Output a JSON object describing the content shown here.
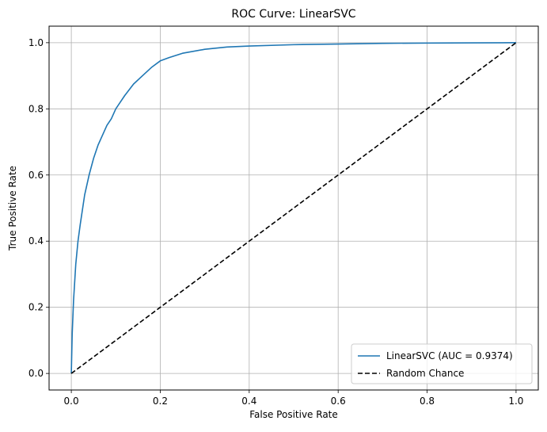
{
  "chart_data": {
    "type": "line",
    "title": "ROC Curve: LinearSVC",
    "xlabel": "False Positive Rate",
    "ylabel": "True Positive Rate",
    "xlim": [
      -0.05,
      1.05
    ],
    "ylim": [
      -0.05,
      1.05
    ],
    "xticks": [
      0.0,
      0.2,
      0.4,
      0.6,
      0.8,
      1.0
    ],
    "yticks": [
      0.0,
      0.2,
      0.4,
      0.6,
      0.8,
      1.0
    ],
    "xtick_labels": [
      "0.0",
      "0.2",
      "0.4",
      "0.6",
      "0.8",
      "1.0"
    ],
    "ytick_labels": [
      "0.0",
      "0.2",
      "0.4",
      "0.6",
      "0.8",
      "1.0"
    ],
    "grid": true,
    "legend_position": "lower-right",
    "series": [
      {
        "name": "LinearSVC (AUC = 0.9374)",
        "color": "#1f77b4",
        "style": "solid",
        "x": [
          0.0,
          0.002,
          0.005,
          0.01,
          0.015,
          0.02,
          0.03,
          0.04,
          0.05,
          0.06,
          0.07,
          0.08,
          0.09,
          0.1,
          0.12,
          0.14,
          0.16,
          0.18,
          0.2,
          0.22,
          0.25,
          0.3,
          0.35,
          0.4,
          0.5,
          0.6,
          0.7,
          0.8,
          0.9,
          1.0
        ],
        "y": [
          0.0,
          0.12,
          0.22,
          0.33,
          0.4,
          0.45,
          0.54,
          0.6,
          0.65,
          0.69,
          0.72,
          0.75,
          0.77,
          0.8,
          0.84,
          0.875,
          0.9,
          0.925,
          0.945,
          0.955,
          0.968,
          0.98,
          0.987,
          0.99,
          0.994,
          0.996,
          0.998,
          0.999,
          0.9995,
          1.0
        ]
      },
      {
        "name": "Random Chance",
        "color": "#000000",
        "style": "dashed",
        "x": [
          0.0,
          1.0
        ],
        "y": [
          0.0,
          1.0
        ]
      }
    ]
  }
}
